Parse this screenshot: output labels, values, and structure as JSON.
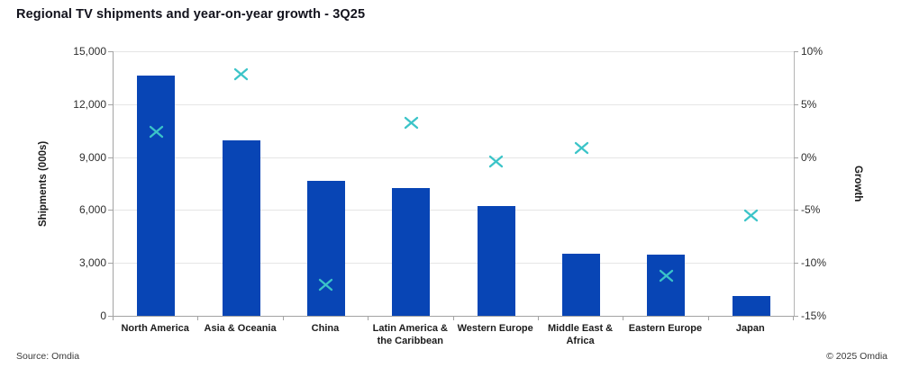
{
  "header": {
    "title": "Regional TV shipments and year-on-year growth - 3Q25"
  },
  "footer": {
    "source": "Source: Omdia",
    "copyright": "© 2025 Omdia"
  },
  "colors": {
    "bar": "#0845B5",
    "marker": "#3BC4C8",
    "gridline": "#e5e5e5",
    "axis_line": "#a3a3a3"
  },
  "chart_data": {
    "type": "bar",
    "title": "Regional TV shipments and year-on-year growth - 3Q25",
    "categories": [
      "North America",
      "Asia & Oceania",
      "China",
      "Latin America & the Caribbean",
      "Western Europe",
      "Middle East & Africa",
      "Eastern Europe",
      "Japan"
    ],
    "series": [
      {
        "name": "Shipments (000s)",
        "type": "bar",
        "axis": "left",
        "values": [
          13600,
          9950,
          7650,
          7250,
          6250,
          3500,
          3450,
          1100
        ],
        "color": "#0845B5"
      },
      {
        "name": "Growth",
        "type": "scatter",
        "marker": "x",
        "axis": "right",
        "values": [
          2.4,
          7.8,
          -12.1,
          3.2,
          -0.4,
          0.9,
          -11.2,
          -5.5
        ],
        "color": "#3BC4C8"
      }
    ],
    "left_axis": {
      "label": "Shipments (000s)",
      "min": 0,
      "max": 15000,
      "ticks": [
        "15,000",
        "12,000",
        "9,000",
        "6,000",
        "3,000",
        "0"
      ]
    },
    "right_axis": {
      "label": "Growth",
      "min": -15,
      "max": 10,
      "ticks": [
        "10%",
        "5%",
        "0%",
        "-5%",
        "-10%",
        "-15%"
      ]
    },
    "grid": true,
    "legend_position": "none"
  }
}
